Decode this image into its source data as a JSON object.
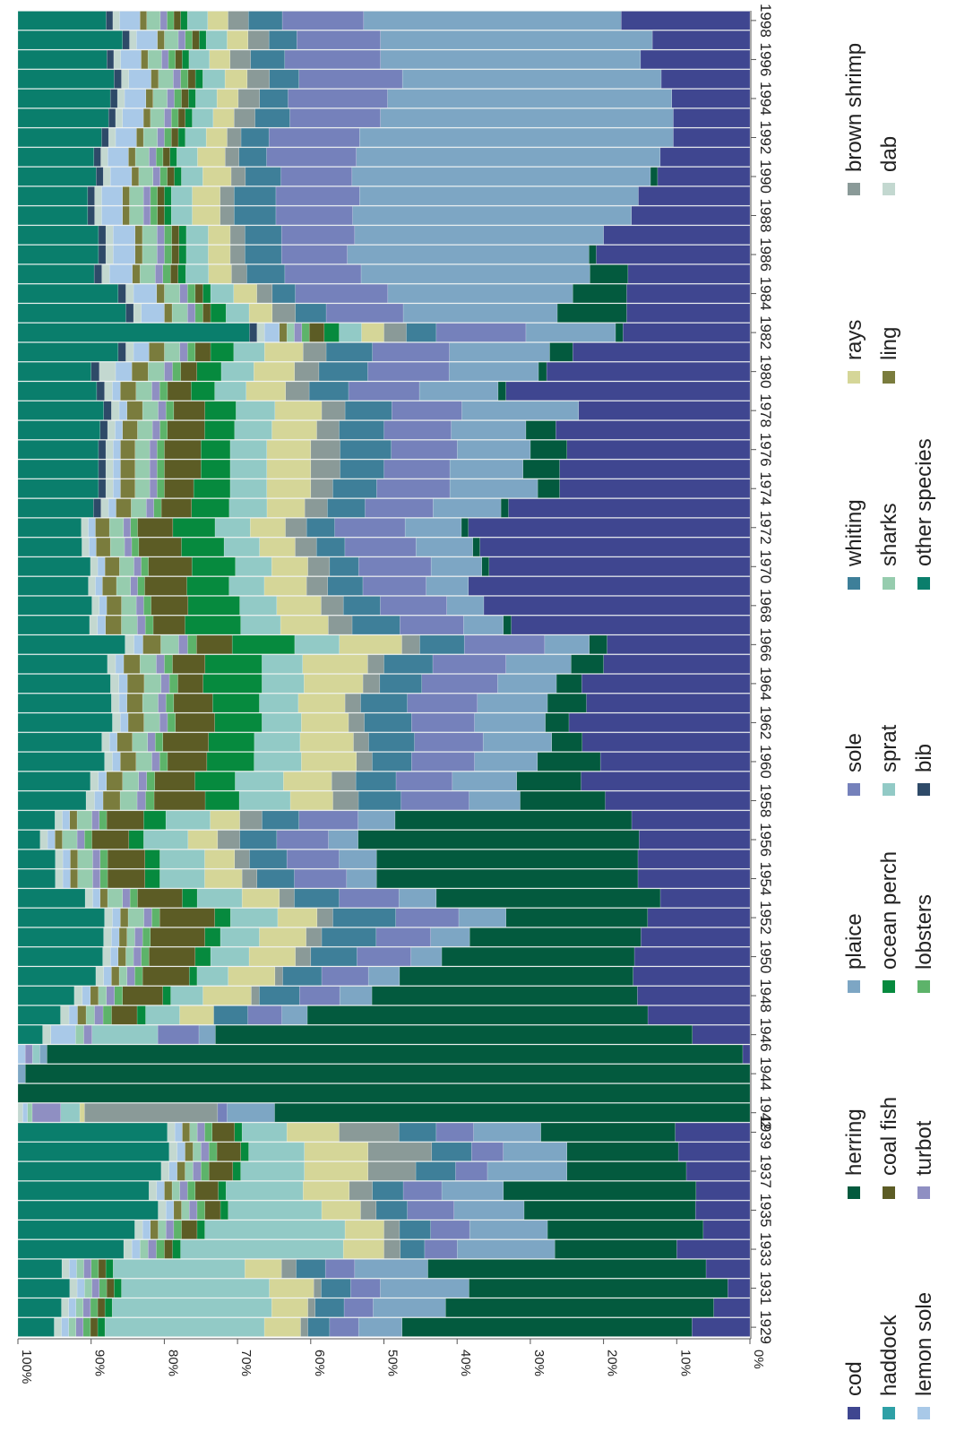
{
  "chart_data": {
    "type": "bar",
    "stacked": true,
    "normalized": true,
    "orientation": "horizontal, rotated 90° clockwise (read with years on a bottom axis)",
    "title": "",
    "xlabel": "",
    "ylabel": "",
    "ylim": [
      0,
      100
    ],
    "y_ticks": [
      "0%",
      "10%",
      "20%",
      "30%",
      "40%",
      "50%",
      "60%",
      "70%",
      "80%",
      "90%",
      "100%"
    ],
    "x_ticks": [
      "1929",
      "1931",
      "1933",
      "1935",
      "1937",
      "1939",
      "1942",
      "1944",
      "1946",
      "1948",
      "1950",
      "1952",
      "1954",
      "1956",
      "1958",
      "1960",
      "1962",
      "1964",
      "1966",
      "1968",
      "1970",
      "1972",
      "1974",
      "1976",
      "1978",
      "1980",
      "1982",
      "1984",
      "1986",
      "1988",
      "1990",
      "1992",
      "1994",
      "1996",
      "1998"
    ],
    "categories": [
      "1929",
      "1930",
      "1931",
      "1932",
      "1933",
      "1934",
      "1935",
      "1936",
      "1937",
      "1938",
      "1939",
      "1942",
      "1943",
      "1944",
      "1945",
      "1946",
      "1947",
      "1948",
      "1949",
      "1950",
      "1951",
      "1952",
      "1953",
      "1954",
      "1955",
      "1956",
      "1957",
      "1958",
      "1959",
      "1960",
      "1961",
      "1962",
      "1963",
      "1964",
      "1965",
      "1966",
      "1967",
      "1968",
      "1969",
      "1970",
      "1971",
      "1972",
      "1973",
      "1974",
      "1975",
      "1976",
      "1977",
      "1978",
      "1979",
      "1980",
      "1981",
      "1982",
      "1983",
      "1984",
      "1985",
      "1986",
      "1987",
      "1988",
      "1989",
      "1990",
      "1991",
      "1992",
      "1993",
      "1994",
      "1995",
      "1996",
      "1997",
      "1998"
    ],
    "legend_position": "right (columns of species names)",
    "grid": false,
    "series": [
      {
        "name": "cod",
        "color": "#3f4690",
        "values": [
          8,
          5,
          3,
          6,
          9,
          6,
          7,
          7,
          8,
          9,
          10,
          0,
          0,
          0,
          1,
          7,
          12,
          14,
          15,
          15,
          14,
          13,
          12,
          15,
          15,
          15,
          16,
          17,
          21,
          19,
          22,
          23,
          21,
          20,
          18,
          16,
          30,
          36,
          40,
          36,
          38,
          40,
          32,
          26,
          26,
          25,
          26,
          22,
          31,
          25,
          23,
          17,
          16,
          16,
          16,
          21,
          20,
          17,
          16,
          13,
          13,
          11,
          11,
          11,
          12,
          16,
          14,
          19
        ]
      },
      {
        "name": "herring",
        "color": "#035a3e",
        "values": [
          40,
          37,
          35,
          38,
          15,
          20,
          22,
          25,
          15,
          14,
          18,
          100,
          100,
          99,
          96,
          58,
          40,
          33,
          30,
          25,
          22,
          18,
          30,
          35,
          35,
          38,
          32,
          10,
          8,
          8,
          4,
          3,
          5,
          3,
          4,
          2,
          1,
          0,
          0,
          1,
          1,
          1,
          1,
          3,
          5,
          5,
          4,
          0,
          1,
          1,
          3,
          1,
          9,
          7,
          5,
          1,
          0,
          0,
          0,
          1,
          0,
          0,
          0,
          0,
          0,
          0,
          0,
          0
        ]
      },
      {
        "name": "plaice",
        "color": "#7da6c4",
        "values": [
          6,
          10,
          12,
          10,
          12,
          10,
          9,
          8,
          10,
          8,
          9,
          10,
          0,
          1,
          1,
          2,
          3,
          4,
          4,
          4,
          5,
          6,
          5,
          4,
          5,
          4,
          5,
          6,
          8,
          8,
          9,
          9,
          9,
          7,
          8,
          5,
          5,
          5,
          6,
          7,
          8,
          8,
          9,
          12,
          10,
          10,
          10,
          15,
          10,
          11,
          13,
          12,
          20,
          24,
          30,
          33,
          34,
          40,
          40,
          42,
          44,
          45,
          42,
          40,
          35,
          38,
          39,
          38
        ]
      },
      {
        "name": "sole",
        "color": "#7581bb",
        "values": [
          4,
          4,
          4,
          4,
          4,
          5,
          6,
          5,
          4,
          4,
          5,
          2,
          0,
          0,
          0,
          5,
          4,
          5,
          6,
          7,
          7,
          8,
          8,
          7,
          7,
          7,
          8,
          8,
          7,
          8,
          9,
          8,
          9,
          9,
          9,
          9,
          8,
          9,
          9,
          10,
          10,
          10,
          9,
          10,
          9,
          9,
          9,
          9,
          9,
          10,
          10,
          12,
          10,
          12,
          10,
          9,
          10,
          11,
          12,
          10,
          13,
          13,
          13,
          14,
          14,
          14,
          12,
          12
        ]
      },
      {
        "name": "whiting",
        "color": "#3e7f99",
        "values": [
          3,
          4,
          4,
          4,
          3,
          4,
          4,
          4,
          5,
          5,
          5,
          0,
          0,
          0,
          0,
          0,
          4,
          5,
          5,
          6,
          7,
          8,
          6,
          5,
          5,
          5,
          5,
          5,
          5,
          5,
          6,
          6,
          6,
          5,
          6,
          5,
          6,
          5,
          5,
          4,
          4,
          4,
          5,
          6,
          6,
          7,
          6,
          6,
          5,
          6,
          6,
          4,
          4,
          3,
          5,
          5,
          5,
          6,
          6,
          5,
          4,
          4,
          5,
          4,
          4,
          5,
          4,
          5
        ]
      },
      {
        "name": "brown shrimp",
        "color": "#8a9a98",
        "values": [
          1,
          1,
          1,
          2,
          2,
          2,
          2,
          3,
          6,
          8,
          8,
          28,
          0,
          0,
          0,
          0,
          0,
          1,
          1,
          2,
          2,
          2,
          2,
          2,
          2,
          3,
          3,
          3,
          3,
          2,
          2,
          2,
          2,
          2,
          2,
          2,
          3,
          3,
          3,
          3,
          3,
          3,
          3,
          3,
          4,
          4,
          3,
          3,
          3,
          3,
          3,
          3,
          3,
          2,
          2,
          2,
          2,
          2,
          2,
          2,
          2,
          2,
          3,
          3,
          3,
          3,
          3,
          3
        ]
      },
      {
        "name": "rays",
        "color": "#d5d698",
        "values": [
          5,
          5,
          6,
          5,
          5,
          5,
          5,
          6,
          8,
          8,
          7,
          1,
          0,
          0,
          0,
          0,
          4,
          6,
          6,
          6,
          6,
          5,
          5,
          5,
          4,
          4,
          4,
          5,
          6,
          7,
          7,
          6,
          6,
          7,
          8,
          7,
          6,
          6,
          6,
          5,
          5,
          5,
          5,
          6,
          6,
          6,
          6,
          6,
          5,
          5,
          5,
          3,
          3,
          3,
          3,
          3,
          3,
          4,
          4,
          4,
          4,
          3,
          3,
          3,
          3,
          3,
          3,
          3
        ]
      },
      {
        "name": "sprat",
        "color": "#92cac6",
        "values": [
          22,
          22,
          20,
          18,
          20,
          18,
          12,
          10,
          8,
          7,
          6,
          4,
          0,
          0,
          1,
          8,
          4,
          4,
          4,
          5,
          5,
          6,
          6,
          6,
          6,
          6,
          6,
          6,
          6,
          6,
          6,
          5,
          5,
          5,
          5,
          5,
          5,
          5,
          5,
          5,
          5,
          5,
          5,
          5,
          5,
          5,
          5,
          5,
          4,
          4,
          4,
          3,
          3,
          3,
          3,
          3,
          3,
          3,
          3,
          3,
          3,
          3,
          3,
          3,
          3,
          3,
          3,
          3
        ]
      },
      {
        "name": "ocean perch",
        "color": "#068a3e",
        "values": [
          1,
          1,
          1,
          1,
          1,
          1,
          1,
          1,
          1,
          1,
          1,
          0,
          0,
          0,
          0,
          0,
          1,
          1,
          1,
          2,
          2,
          2,
          2,
          2,
          2,
          2,
          3,
          4,
          5,
          6,
          6,
          6,
          6,
          7,
          7,
          7,
          7,
          7,
          6,
          6,
          6,
          6,
          5,
          5,
          4,
          4,
          4,
          4,
          3,
          3,
          3,
          2,
          2,
          1,
          1,
          1,
          1,
          1,
          1,
          1,
          1,
          1,
          1,
          1,
          1,
          1,
          1,
          1
        ]
      },
      {
        "name": "coal fish",
        "color": "#5c5c25",
        "values": [
          1,
          1,
          1,
          1,
          1,
          2,
          2,
          3,
          3,
          3,
          3,
          0,
          0,
          0,
          0,
          0,
          3,
          5,
          6,
          6,
          7,
          7,
          6,
          5,
          5,
          5,
          5,
          6,
          5,
          5,
          6,
          5,
          5,
          3,
          4,
          4,
          4,
          5,
          6,
          6,
          6,
          5,
          4,
          4,
          5,
          5,
          5,
          4,
          3,
          2,
          2,
          2,
          1,
          1,
          1,
          1,
          1,
          1,
          1,
          1,
          1,
          1,
          1,
          1,
          1,
          1,
          1,
          1
        ]
      },
      {
        "name": "lobsters",
        "color": "#5db36a",
        "values": [
          1,
          1,
          1,
          1,
          1,
          1,
          1,
          1,
          1,
          1,
          1,
          0,
          0,
          0,
          0,
          0,
          1,
          1,
          1,
          1,
          1,
          1,
          1,
          1,
          1,
          1,
          1,
          1,
          1,
          1,
          1,
          1,
          1,
          1,
          1,
          1,
          1,
          1,
          1,
          1,
          1,
          1,
          1,
          1,
          1,
          1,
          1,
          1,
          1,
          1,
          1,
          1,
          1,
          1,
          1,
          1,
          1,
          1,
          1,
          1,
          1,
          1,
          1,
          1,
          1,
          1,
          1,
          1
        ]
      },
      {
        "name": "turbot",
        "color": "#8f8fc2",
        "values": [
          1,
          1,
          1,
          1,
          1,
          1,
          1,
          1,
          1,
          1,
          1,
          6,
          0,
          0,
          1,
          1,
          1,
          1,
          1,
          1,
          1,
          1,
          1,
          1,
          1,
          1,
          1,
          1,
          1,
          1,
          1,
          1,
          1,
          1,
          1,
          1,
          1,
          1,
          1,
          1,
          1,
          1,
          1,
          1,
          1,
          1,
          1,
          1,
          1,
          1,
          1,
          1,
          1,
          1,
          1,
          1,
          1,
          1,
          1,
          1,
          1,
          1,
          1,
          1,
          1,
          1,
          1,
          1
        ]
      },
      {
        "name": "sharks",
        "color": "#96ccae",
        "values": [
          1,
          1,
          1,
          1,
          1,
          1,
          1,
          1,
          1,
          1,
          1,
          1,
          0,
          0,
          0,
          1,
          1,
          1,
          1,
          1,
          1,
          2,
          2,
          2,
          2,
          2,
          2,
          2,
          2,
          2,
          2,
          2,
          2,
          2,
          2,
          2,
          2,
          2,
          2,
          2,
          2,
          2,
          2,
          2,
          2,
          2,
          2,
          2,
          2,
          2,
          2,
          1,
          2,
          2,
          2,
          2,
          2,
          2,
          2,
          2,
          2,
          2,
          2,
          2,
          2,
          2,
          2,
          2
        ]
      },
      {
        "name": "ling",
        "color": "#7a7c3d",
        "values": [
          0,
          0,
          0,
          0,
          0,
          1,
          1,
          1,
          1,
          1,
          1,
          0,
          0,
          0,
          0,
          0,
          1,
          1,
          1,
          1,
          1,
          1,
          1,
          1,
          1,
          1,
          1,
          2,
          2,
          2,
          2,
          2,
          2,
          2,
          2,
          2,
          2,
          2,
          2,
          2,
          2,
          2,
          2,
          2,
          2,
          2,
          2,
          2,
          2,
          2,
          2,
          1,
          1,
          1,
          1,
          1,
          1,
          1,
          1,
          1,
          1,
          1,
          1,
          1,
          1,
          1,
          1,
          1
        ]
      },
      {
        "name": "lemon sole",
        "color": "#a9c9e8",
        "values": [
          1,
          1,
          1,
          1,
          1,
          1,
          1,
          1,
          1,
          1,
          1,
          1,
          0,
          0,
          1,
          3,
          1,
          1,
          1,
          1,
          1,
          1,
          1,
          1,
          1,
          1,
          1,
          1,
          1,
          1,
          1,
          1,
          1,
          1,
          1,
          1,
          1,
          1,
          1,
          1,
          1,
          1,
          1,
          1,
          1,
          1,
          1,
          1,
          1,
          2,
          2,
          2,
          3,
          3,
          3,
          3,
          3,
          3,
          3,
          3,
          3,
          3,
          3,
          3,
          3,
          3,
          3,
          3
        ]
      },
      {
        "name": "dab",
        "color": "#c3d8d0",
        "values": [
          1,
          1,
          1,
          1,
          1,
          1,
          1,
          1,
          1,
          1,
          1,
          1,
          0,
          0,
          0,
          1,
          1,
          1,
          1,
          1,
          1,
          1,
          1,
          1,
          1,
          1,
          1,
          1,
          1,
          1,
          1,
          1,
          1,
          1,
          1,
          1,
          1,
          1,
          1,
          1,
          1,
          1,
          1,
          1,
          1,
          1,
          1,
          1,
          1,
          2,
          1,
          1,
          1,
          1,
          1,
          1,
          1,
          1,
          1,
          1,
          1,
          1,
          1,
          1,
          1,
          1,
          1,
          1
        ]
      },
      {
        "name": "bib",
        "color": "#2e4a68",
        "values": [
          0,
          0,
          0,
          0,
          0,
          0,
          0,
          0,
          0,
          0,
          0,
          0,
          0,
          0,
          0,
          0,
          0,
          0,
          0,
          0,
          0,
          0,
          0,
          0,
          0,
          0,
          0,
          0,
          0,
          0,
          0,
          0,
          0,
          0,
          0,
          0,
          0,
          0,
          0,
          0,
          0,
          0,
          1,
          1,
          1,
          1,
          1,
          1,
          1,
          1,
          1,
          1,
          1,
          1,
          1,
          1,
          1,
          1,
          1,
          1,
          1,
          1,
          1,
          1,
          1,
          1,
          1,
          1
        ]
      },
      {
        "name": "other species",
        "color": "#0a7e6c",
        "values": [
          5,
          6,
          7,
          6,
          13,
          15,
          18,
          17,
          18,
          19,
          20,
          0,
          0,
          0,
          0,
          3,
          5,
          7,
          10,
          11,
          11,
          11,
          9,
          5,
          5,
          3,
          5,
          8,
          9,
          11,
          11,
          12,
          12,
          11,
          11,
          12,
          9,
          10,
          10,
          10,
          9,
          9,
          10,
          11,
          11,
          11,
          11,
          11,
          10,
          9,
          13,
          31,
          14,
          13,
          10,
          11,
          11,
          10,
          10,
          11,
          11,
          12,
          13,
          13,
          13,
          13,
          15,
          13
        ]
      }
    ]
  }
}
